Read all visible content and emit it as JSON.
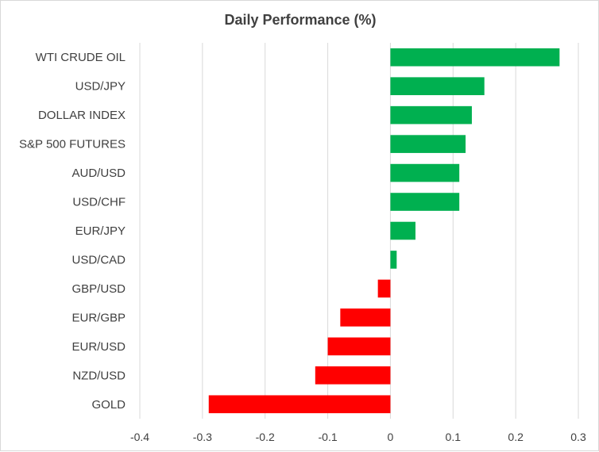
{
  "chart_data": {
    "type": "bar",
    "orientation": "horizontal",
    "title": "Daily Performance (%)",
    "xlabel": "",
    "ylabel": "",
    "categories": [
      "WTI CRUDE OIL",
      "USD/JPY",
      "DOLLAR INDEX",
      "S&P 500 FUTURES",
      "AUD/USD",
      "USD/CHF",
      "EUR/JPY",
      "USD/CAD",
      "GBP/USD",
      "EUR/GBP",
      "EUR/USD",
      "NZD/USD",
      "GOLD"
    ],
    "values": [
      0.27,
      0.15,
      0.13,
      0.12,
      0.11,
      0.11,
      0.04,
      0.01,
      -0.02,
      -0.08,
      -0.1,
      -0.12,
      -0.29
    ],
    "xlim": [
      -0.4,
      0.3
    ],
    "ticks": [
      "-0.4",
      "-0.3",
      "-0.2",
      "-0.1",
      "0",
      "0.1",
      "0.2",
      "0.3"
    ],
    "tick_values": [
      -0.4,
      -0.3,
      -0.2,
      -0.1,
      0,
      0.1,
      0.2,
      0.3
    ],
    "grid": true,
    "legend": "none",
    "colors": {
      "positive": "#00b050",
      "negative": "#ff0000",
      "grid": "#d9d9d9",
      "text": "#404040"
    }
  }
}
